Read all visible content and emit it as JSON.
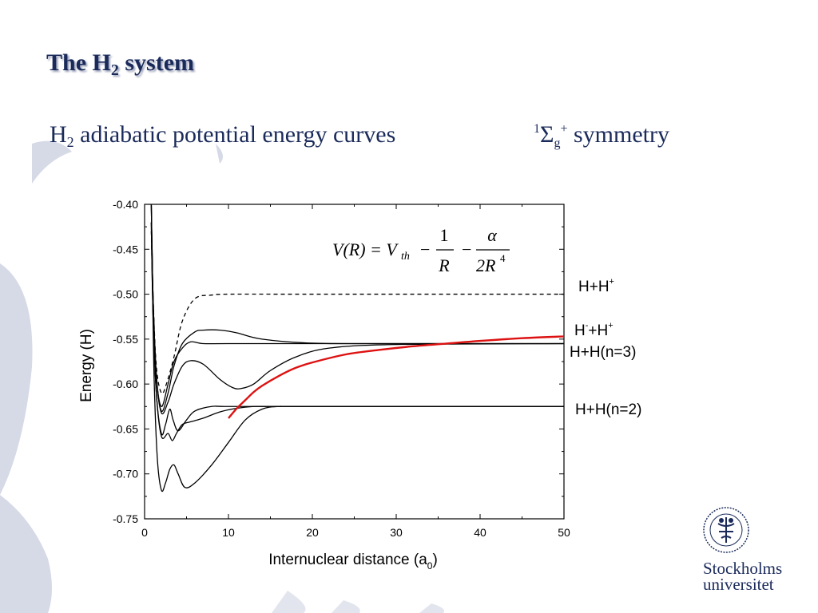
{
  "slide": {
    "title_main": "The H",
    "title_sub": "2",
    "title_tail": " system",
    "subtitle_pre": "H",
    "subtitle_sub": "2",
    "subtitle_post": " adiabatic potential energy curves",
    "sym_sup1": "1",
    "sym_sigma": "Σ",
    "sym_sub": "g",
    "sym_sup2": "+",
    "sym_text": " symmetry"
  },
  "formula": {
    "lhs": "V(R) = V",
    "lhs_sub": "th",
    "term1_num": "1",
    "term1_den": "R",
    "term2_num": "α",
    "term2_den": "2R",
    "term2_den_sup": "4"
  },
  "curve_labels": {
    "hh_plus": "H+H",
    "hh_plus_sup": "+",
    "hminus": "H",
    "hminus_sup": "-",
    "hminus_tail": "+H",
    "hminus_tail_sup": "+",
    "n3": "H+H(n=3)",
    "n2": "H+H(n=2)"
  },
  "logo": {
    "name_line1": "Stockholms",
    "name_line2": "universitet"
  },
  "chart_data": {
    "type": "line",
    "xlabel": "Internuclear distance (a0)",
    "xlabel_main": "Internuclear distance (a",
    "xlabel_sub": "0",
    "xlabel_close": ")",
    "ylabel": "Energy (H)",
    "xlim": [
      0,
      50
    ],
    "ylim": [
      -0.75,
      -0.4
    ],
    "xticks": [
      0,
      10,
      20,
      30,
      40,
      50
    ],
    "yticks": [
      -0.4,
      -0.45,
      -0.5,
      -0.55,
      -0.6,
      -0.65,
      -0.7,
      -0.75
    ],
    "ytick_labels": [
      "-0.40",
      "-0.45",
      "-0.50",
      "-0.55",
      "-0.60",
      "-0.65",
      "-0.70",
      "-0.75"
    ],
    "series": [
      {
        "style": "dashed",
        "color": "#000000",
        "x": [
          0.8,
          1.0,
          1.4,
          2.0,
          2.6,
          3.5,
          4.5,
          6,
          8,
          10,
          20,
          50
        ],
        "y": [
          -0.43,
          -0.5,
          -0.58,
          -0.61,
          -0.6,
          -0.57,
          -0.53,
          -0.505,
          -0.501,
          -0.5,
          -0.5,
          -0.5
        ]
      },
      {
        "style": "solid",
        "color": "#000000",
        "x": [
          0.8,
          1.0,
          1.4,
          2.0,
          2.8,
          3.5,
          4.5,
          6,
          7,
          9,
          11,
          14,
          20,
          30,
          50
        ],
        "y": [
          -0.4,
          -0.5,
          -0.59,
          -0.63,
          -0.61,
          -0.58,
          -0.555,
          -0.542,
          -0.54,
          -0.54,
          -0.543,
          -0.55,
          -0.5545,
          -0.555,
          -0.555
        ]
      },
      {
        "style": "solid",
        "color": "#000000",
        "x": [
          0.8,
          1.0,
          1.4,
          2.0,
          2.8,
          3.5,
          4.5,
          5.5,
          7,
          10,
          20,
          50
        ],
        "y": [
          -0.4,
          -0.5,
          -0.59,
          -0.625,
          -0.6,
          -0.575,
          -0.56,
          -0.553,
          -0.555,
          -0.555,
          -0.555,
          -0.555
        ]
      },
      {
        "style": "solid",
        "color": "#000000",
        "x": [
          0.8,
          1.0,
          1.4,
          2.0,
          2.8,
          3.5,
          4.5,
          5.5,
          7,
          9,
          10.5,
          11.5,
          13,
          15,
          18,
          22,
          30,
          50
        ],
        "y": [
          -0.4,
          -0.5,
          -0.59,
          -0.632,
          -0.62,
          -0.6,
          -0.58,
          -0.574,
          -0.578,
          -0.595,
          -0.604,
          -0.605,
          -0.6,
          -0.585,
          -0.57,
          -0.56,
          -0.556,
          -0.555
        ]
      },
      {
        "style": "solid",
        "color": "#000000",
        "x": [
          0.8,
          1.0,
          1.4,
          2.0,
          2.5,
          3.0,
          3.4,
          4.0,
          5.0,
          6.0,
          8,
          10,
          20,
          50
        ],
        "y": [
          -0.42,
          -0.52,
          -0.61,
          -0.655,
          -0.645,
          -0.628,
          -0.64,
          -0.652,
          -0.64,
          -0.63,
          -0.625,
          -0.625,
          -0.625,
          -0.625
        ]
      },
      {
        "style": "solid",
        "color": "#000000",
        "x": [
          0.8,
          1.0,
          1.4,
          2.0,
          2.8,
          3.3,
          3.8,
          4.5,
          5.5,
          7,
          9,
          11,
          13,
          15,
          20,
          50
        ],
        "y": [
          -0.42,
          -0.52,
          -0.61,
          -0.658,
          -0.655,
          -0.663,
          -0.655,
          -0.645,
          -0.642,
          -0.638,
          -0.631,
          -0.627,
          -0.625,
          -0.625,
          -0.625,
          -0.625
        ]
      },
      {
        "style": "solid",
        "color": "#000000",
        "x": [
          0.9,
          1.1,
          1.5,
          2.0,
          2.5,
          3.0,
          3.5,
          4.0,
          4.8,
          6.0,
          8,
          10,
          12,
          14,
          16,
          20,
          50
        ],
        "y": [
          -0.45,
          -0.58,
          -0.68,
          -0.718,
          -0.71,
          -0.695,
          -0.69,
          -0.7,
          -0.715,
          -0.71,
          -0.69,
          -0.665,
          -0.64,
          -0.628,
          -0.625,
          -0.625,
          -0.625
        ]
      },
      {
        "style": "solid",
        "color": "#dd1111",
        "x": [
          10,
          11,
          12,
          13,
          14,
          16,
          18,
          20,
          24,
          28,
          32,
          36,
          40,
          45,
          50
        ],
        "y": [
          -0.638,
          -0.627,
          -0.618,
          -0.609,
          -0.602,
          -0.591,
          -0.582,
          -0.576,
          -0.567,
          -0.562,
          -0.558,
          -0.555,
          -0.552,
          -0.549,
          -0.547
        ]
      }
    ]
  }
}
